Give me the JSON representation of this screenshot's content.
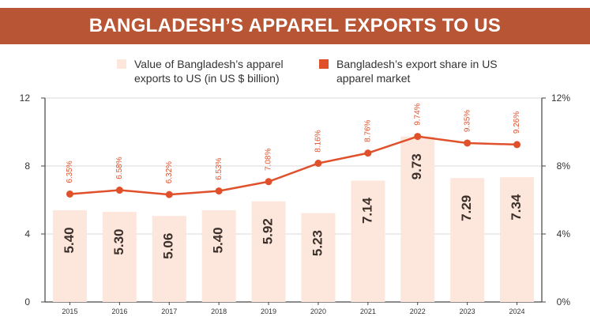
{
  "chart_data": {
    "type": "bar",
    "title": "BANGLADESH’S APPAREL EXPORTS TO US",
    "categories": [
      "2015",
      "2016",
      "2017",
      "2018",
      "2019",
      "2020",
      "2021",
      "2022",
      "2023",
      "2024"
    ],
    "series": [
      {
        "name": "Value of Bangladesh’s apparel exports to US (in US $ billion)",
        "type": "bar",
        "axis": "left",
        "values": [
          5.4,
          5.3,
          5.06,
          5.4,
          5.92,
          5.23,
          7.14,
          9.73,
          7.29,
          7.34
        ],
        "labels": [
          "5.40",
          "5.30",
          "5.06",
          "5.40",
          "5.92",
          "5.23",
          "7.14",
          "9.73",
          "7.29",
          "7.34"
        ]
      },
      {
        "name": "Bangladesh’s export share in US apparel market",
        "type": "line",
        "axis": "right",
        "values": [
          6.35,
          6.58,
          6.32,
          6.53,
          7.08,
          8.16,
          8.76,
          9.74,
          9.35,
          9.26
        ],
        "labels": [
          "6.35%",
          "6.58%",
          "6.32%",
          "6.53%",
          "7.08%",
          "8.16%",
          "8.76%",
          "9.74%",
          "9.35%",
          "9.26%"
        ]
      }
    ],
    "y_left": {
      "ylim": [
        0,
        12
      ],
      "ticks": [
        "0",
        "4",
        "8",
        "12"
      ]
    },
    "y_right": {
      "ylim": [
        0,
        12
      ],
      "ticks": [
        "0%",
        "4%",
        "8%",
        "12%"
      ]
    },
    "grid": true,
    "legend_position": "top",
    "colors": {
      "title_bg": "#b85535",
      "bar": "#fde6db",
      "bar_label": "#3a2f2a",
      "line": "#e0512b",
      "line_label": "#e0512b",
      "grid": "#d9d9d9",
      "axis": "#444444"
    }
  }
}
